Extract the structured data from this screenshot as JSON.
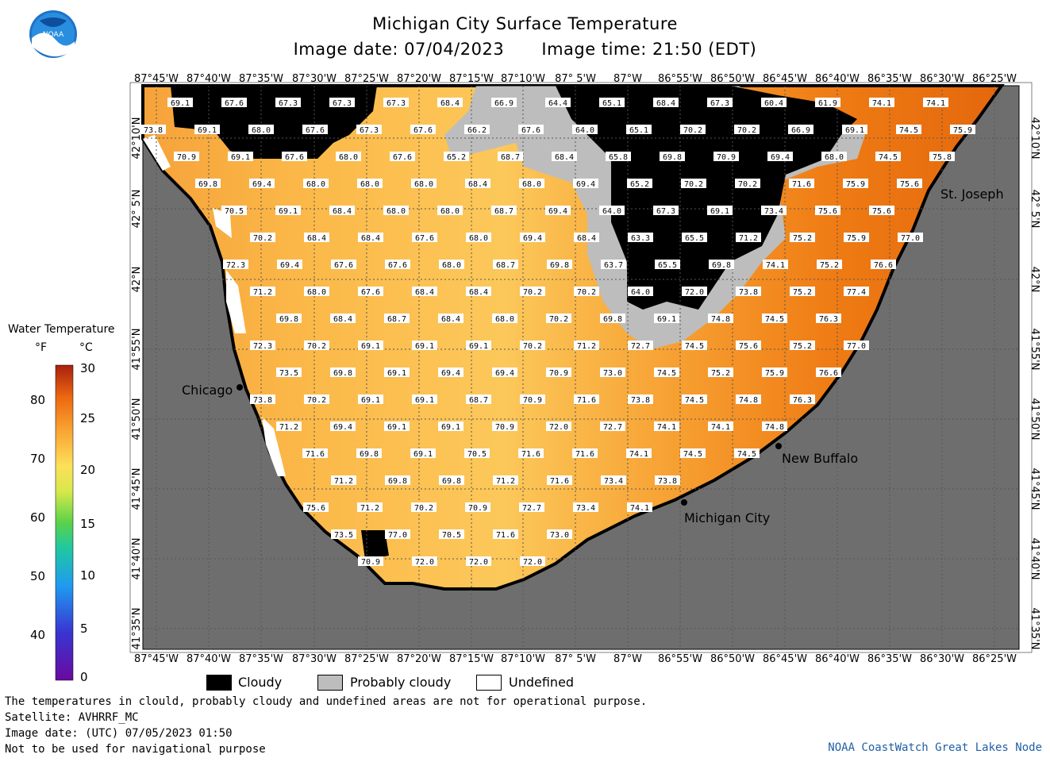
{
  "header": {
    "title": "Michigan City Surface Temperature",
    "image_date": "Image date: 07/04/2023",
    "image_time": "Image time: 21:50 (EDT)"
  },
  "logo": {
    "text": "NOAA"
  },
  "axes": {
    "lon_labels": [
      "87°45'W",
      "87°40'W",
      "87°35'W",
      "87°30'W",
      "87°25'W",
      "87°20'W",
      "87°15'W",
      "87°10'W",
      "87° 5'W",
      "87°W",
      "86°55'W",
      "86°50'W",
      "86°45'W",
      "86°40'W",
      "86°35'W",
      "86°30'W",
      "86°25'W"
    ],
    "lat_labels": [
      "42°10'N",
      "42° 5'N",
      "42°N",
      "41°55'N",
      "41°50'N",
      "41°45'N",
      "41°40'N",
      "41°35'N"
    ]
  },
  "places": [
    {
      "name": "Chicago"
    },
    {
      "name": "St. Joseph"
    },
    {
      "name": "New Buffalo"
    },
    {
      "name": "Michigan City"
    }
  ],
  "temperature_rows": [
    [
      "69.1",
      "67.6",
      "67.3",
      "67.3",
      "67.3",
      "68.4",
      "66.9",
      "64.4",
      "65.1",
      "68.4",
      "67.3",
      "60.4",
      "61.9",
      "74.1",
      "74.1"
    ],
    [
      "73.8",
      "69.1",
      "68.0",
      "67.6",
      "67.3",
      "67.6",
      "66.2",
      "67.6",
      "64.0",
      "65.1",
      "70.2",
      "70.2",
      "66.9",
      "69.1",
      "74.5",
      "75.9"
    ],
    [
      "70.9",
      "69.1",
      "67.6",
      "68.0",
      "67.6",
      "65.2",
      "68.7",
      "68.4",
      "65.8",
      "69.8",
      "70.9",
      "69.4",
      "68.0",
      "74.5",
      "75.8"
    ],
    [
      "69.8",
      "69.4",
      "68.0",
      "68.0",
      "68.0",
      "68.4",
      "68.0",
      "69.4",
      "65.2",
      "70.2",
      "70.2",
      "71.6",
      "75.9",
      "75.6"
    ],
    [
      "70.5",
      "69.1",
      "68.4",
      "68.0",
      "68.0",
      "68.7",
      "69.4",
      "64.0",
      "67.3",
      "69.1",
      "73.4",
      "75.6",
      "75.6"
    ],
    [
      "70.2",
      "68.4",
      "68.4",
      "67.6",
      "68.0",
      "69.4",
      "68.4",
      "63.3",
      "65.5",
      "71.2",
      "75.2",
      "75.9",
      "77.0"
    ],
    [
      "72.3",
      "69.4",
      "67.6",
      "67.6",
      "68.0",
      "68.7",
      "69.8",
      "63.7",
      "65.5",
      "69.8",
      "74.1",
      "75.2",
      "76.6"
    ],
    [
      "71.2",
      "68.0",
      "67.6",
      "68.4",
      "68.4",
      "70.2",
      "70.2",
      "64.0",
      "72.0",
      "73.8",
      "75.2",
      "77.4"
    ],
    [
      "69.8",
      "68.4",
      "68.7",
      "68.4",
      "68.0",
      "70.2",
      "69.8",
      "69.1",
      "74.8",
      "74.5",
      "76.3"
    ],
    [
      "72.3",
      "70.2",
      "69.1",
      "69.1",
      "69.1",
      "70.2",
      "71.2",
      "72.7",
      "74.5",
      "75.6",
      "75.2",
      "77.0"
    ],
    [
      "73.5",
      "69.8",
      "69.1",
      "69.4",
      "69.4",
      "70.9",
      "73.0",
      "74.5",
      "75.2",
      "75.9",
      "76.6"
    ],
    [
      "73.8",
      "70.2",
      "69.1",
      "69.1",
      "68.7",
      "70.9",
      "71.6",
      "73.8",
      "74.5",
      "74.8",
      "76.3"
    ],
    [
      "71.2",
      "69.4",
      "69.1",
      "69.1",
      "70.9",
      "72.0",
      "72.7",
      "74.1",
      "74.1",
      "74.8"
    ],
    [
      "71.6",
      "69.8",
      "69.1",
      "70.5",
      "71.6",
      "71.6",
      "74.1",
      "74.5",
      "74.5"
    ],
    [
      "71.2",
      "69.8",
      "69.8",
      "71.2",
      "71.6",
      "73.4",
      "73.8"
    ],
    [
      "75.6",
      "71.2",
      "70.2",
      "70.9",
      "72.7",
      "73.4",
      "74.1"
    ],
    [
      "73.5",
      "77.0",
      "70.5",
      "71.6",
      "73.0"
    ],
    [
      "70.9",
      "72.0",
      "72.0",
      "72.0"
    ]
  ],
  "legend": {
    "cloudy": "Cloudy",
    "probably_cloudy": "Probably cloudy",
    "undefined": "Undefined"
  },
  "scale": {
    "title": "Water Temperature",
    "unit_f": "°F",
    "unit_c": "°C",
    "f_ticks": [
      "80",
      "70",
      "60",
      "50",
      "40"
    ],
    "c_ticks": [
      "30",
      "25",
      "20",
      "15",
      "10",
      "5",
      "0"
    ]
  },
  "footer": {
    "note": "The temperatures in clould, probably cloudy and undefined areas are not for operational purpose.",
    "satellite": "Satellite: AVHRRF_MC",
    "utc_date": "Image date: (UTC) 07/05/2023  01:50",
    "warning": "Not to be used for navigational purpose",
    "credit": "NOAA CoastWatch Great Lakes Node"
  },
  "colors": {
    "land": "#6e6e6e",
    "cloud": "#000000",
    "probably_cloudy": "#bdbdbd",
    "undefined": "#ffffff",
    "warm": "#f07b10",
    "cool": "#fbbf4a"
  }
}
